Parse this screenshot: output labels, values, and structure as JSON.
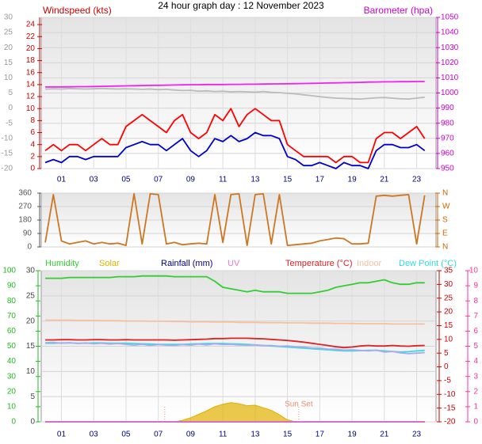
{
  "chart_data": [
    {
      "type": "line",
      "title": "24 hour graph day : 12 November 2023",
      "ylabel": "Windspeed (kts)",
      "y2label": "Barometer (hpa)",
      "x": [
        0,
        0.5,
        1,
        1.5,
        2,
        2.5,
        3,
        3.5,
        4,
        4.5,
        5,
        5.5,
        6,
        6.5,
        7,
        7.5,
        8,
        8.5,
        9,
        9.5,
        10,
        10.5,
        11,
        11.5,
        12,
        12.5,
        13,
        13.5,
        14,
        14.5,
        15,
        15.5,
        16,
        16.5,
        17,
        17.5,
        18,
        18.5,
        19,
        19.5,
        20,
        20.5,
        21,
        21.5,
        22,
        22.5,
        23,
        23.5
      ],
      "xlim": [
        -0.25,
        24.2
      ],
      "xticks": [
        {
          "value": 1,
          "label": "01"
        },
        {
          "value": 3,
          "label": "03"
        },
        {
          "value": 5,
          "label": "05"
        },
        {
          "value": 7,
          "label": "07"
        },
        {
          "value": 9,
          "label": "09"
        },
        {
          "value": 11,
          "label": "11"
        },
        {
          "value": 13,
          "label": "13"
        },
        {
          "value": 15,
          "label": "15"
        },
        {
          "value": 17,
          "label": "17"
        },
        {
          "value": 19,
          "label": "19"
        },
        {
          "value": 21,
          "label": "21"
        },
        {
          "value": 23,
          "label": "23"
        }
      ],
      "ylim": [
        0,
        25.2
      ],
      "yticks": [
        0,
        2,
        4,
        6,
        8,
        10,
        12,
        14,
        16,
        18,
        20,
        22,
        24
      ],
      "y2lim": [
        950,
        1050
      ],
      "y2ticks": [
        950,
        960,
        970,
        980,
        990,
        1000,
        1010,
        1020,
        1030,
        1040,
        1050
      ],
      "y3lim": [
        -20,
        30
      ],
      "y3ticks": [
        -20,
        -15,
        -10,
        -5,
        0,
        5,
        10,
        15,
        20,
        25,
        30
      ],
      "grid_axis": "y2",
      "axis_colors": {
        "y": "#cc0000",
        "y2": "#cc00cc",
        "y3": "#999999"
      },
      "series": [
        {
          "color": "#bbbbbb",
          "axis": "y3",
          "values": [
            6.3,
            6.4,
            6.3,
            6.5,
            6.4,
            6.3,
            6.4,
            6.5,
            6.4,
            6.3,
            6.4,
            6.3,
            6.2,
            6.3,
            6.1,
            6.2,
            6,
            5.8,
            5.9,
            5.6,
            5.7,
            5.5,
            5.6,
            5.4,
            5.5,
            5.4,
            5.3,
            5.5,
            5.2,
            5.1,
            4.9,
            4.7,
            4.4,
            4.1,
            3.8,
            3.5,
            3.3,
            3.2,
            3.1,
            3.0,
            3.2,
            3.4,
            3.5,
            3.3,
            3.1,
            3.0,
            3.3,
            3.6
          ]
        },
        {
          "color": "#ee22ee",
          "axis": "y2",
          "values": [
            1004,
            1004,
            1004,
            1004.1,
            1004.2,
            1004.2,
            1004.3,
            1004.4,
            1004.5,
            1004.6,
            1004.7,
            1004.8,
            1004.9,
            1005,
            1005.1,
            1005.2,
            1005.3,
            1005.4,
            1005.5,
            1005.5,
            1005.6,
            1005.6,
            1005.6,
            1005.7,
            1005.7,
            1005.8,
            1005.8,
            1005.9,
            1006,
            1006,
            1006.1,
            1006.2,
            1006.3,
            1006.4,
            1006.5,
            1006.6,
            1006.7,
            1006.8,
            1006.9,
            1007,
            1007.2,
            1007.3,
            1007.4,
            1007.4,
            1007.5,
            1007.5,
            1007.6,
            1007.6
          ]
        },
        {
          "color": "#ff0000",
          "axis": "y",
          "values": [
            3,
            4,
            3,
            4,
            4,
            3,
            4,
            5,
            4,
            4,
            7,
            8,
            9,
            8,
            7,
            6,
            8,
            9,
            6,
            5,
            6,
            9,
            8,
            10,
            7,
            9,
            10,
            9,
            8,
            8,
            4,
            3,
            2,
            2,
            2,
            2,
            1,
            2,
            2,
            1,
            1,
            5,
            6,
            6,
            5,
            6,
            7,
            5
          ]
        },
        {
          "color": "#0000cc",
          "axis": "y",
          "values": [
            1,
            1.5,
            1,
            2,
            2,
            1.5,
            2,
            2,
            2,
            2,
            3.5,
            4,
            4.5,
            4,
            4,
            3,
            4,
            5,
            3,
            2,
            3,
            5,
            4.5,
            5.5,
            4.5,
            5,
            6,
            5.5,
            5.5,
            5,
            2,
            1.5,
            0.5,
            0.5,
            1,
            0.5,
            0,
            1,
            0.5,
            0.5,
            0,
            3,
            4,
            4,
            3.5,
            3.5,
            4,
            3
          ]
        }
      ]
    },
    {
      "type": "line",
      "x": [
        0,
        0.5,
        1,
        1.5,
        2,
        2.5,
        3,
        3.5,
        4,
        4.5,
        5,
        5.5,
        6,
        6.5,
        7,
        7.5,
        8,
        8.5,
        9,
        9.5,
        10,
        10.5,
        11,
        11.5,
        12,
        12.5,
        13,
        13.5,
        14,
        14.5,
        15,
        15.5,
        16,
        16.5,
        17,
        17.5,
        18,
        18.5,
        19,
        19.5,
        20,
        20.5,
        21,
        21.5,
        22,
        22.5,
        23,
        23.5
      ],
      "xlim": [
        -0.25,
        24.2
      ],
      "ylim": [
        0,
        360
      ],
      "yticks": [
        0,
        90,
        180,
        270,
        360
      ],
      "y2lim": [
        0,
        360
      ],
      "y2ticks": [
        {
          "value": 0,
          "label": "N"
        },
        {
          "value": 90,
          "label": "E"
        },
        {
          "value": 180,
          "label": "S"
        },
        {
          "value": 270,
          "label": "W"
        },
        {
          "value": 360,
          "label": "N"
        }
      ],
      "grid_axis": "y",
      "axis_colors": {
        "y": "#555555",
        "y2": "#cc6600"
      },
      "series": [
        {
          "color": "#cc7722",
          "axis": "y",
          "values": [
            30,
            350,
            40,
            20,
            30,
            40,
            20,
            30,
            20,
            25,
            10,
            355,
            20,
            355,
            350,
            20,
            30,
            15,
            20,
            25,
            20,
            350,
            30,
            350,
            355,
            10,
            350,
            355,
            20,
            350,
            10,
            15,
            20,
            25,
            40,
            50,
            60,
            55,
            20,
            20,
            25,
            340,
            345,
            340,
            345,
            350,
            20,
            345
          ]
        }
      ]
    },
    {
      "type": "line",
      "x": [
        0,
        0.5,
        1,
        1.5,
        2,
        2.5,
        3,
        3.5,
        4,
        4.5,
        5,
        5.5,
        6,
        6.5,
        7,
        7.5,
        8,
        8.5,
        9,
        9.5,
        10,
        10.5,
        11,
        11.5,
        12,
        12.5,
        13,
        13.5,
        14,
        14.5,
        15,
        15.5,
        16,
        16.5,
        17,
        17.5,
        18,
        18.5,
        19,
        19.5,
        20,
        20.5,
        21,
        21.5,
        22,
        22.5,
        23,
        23.5
      ],
      "xlim": [
        -0.25,
        24.2
      ],
      "xticks": [
        {
          "value": 1,
          "label": "01"
        },
        {
          "value": 3,
          "label": "03"
        },
        {
          "value": 5,
          "label": "05"
        },
        {
          "value": 7,
          "label": "07"
        },
        {
          "value": 9,
          "label": "09"
        },
        {
          "value": 11,
          "label": "11"
        },
        {
          "value": 13,
          "label": "13"
        },
        {
          "value": 15,
          "label": "15"
        },
        {
          "value": 17,
          "label": "17"
        },
        {
          "value": 19,
          "label": "19"
        },
        {
          "value": 21,
          "label": "21"
        },
        {
          "value": 23,
          "label": "23"
        }
      ],
      "ylim": [
        0,
        100
      ],
      "yticks": [
        0,
        10,
        20,
        30,
        40,
        50,
        60,
        70,
        80,
        90,
        100
      ],
      "y3lim": [
        0,
        30
      ],
      "y3ticks": [
        0,
        5,
        10,
        15,
        20,
        25,
        30
      ],
      "y2lim": [
        -20,
        35
      ],
      "y2ticks": [
        -20,
        -15,
        -10,
        -5,
        0,
        5,
        10,
        15,
        20,
        25,
        30,
        35
      ],
      "y4lim": [
        0,
        10
      ],
      "y4ticks": [
        0,
        1,
        2,
        3,
        4,
        5,
        6,
        7,
        8,
        9,
        10
      ],
      "grid_axis": "y3",
      "axis_colors": {
        "y": "#22bb22",
        "y3": "#444444",
        "y2": "#cc0000",
        "y4": "#ff3399"
      },
      "annotations": [
        {
          "x": 7.4
        },
        {
          "x": 15.7,
          "text": "Sun Set"
        }
      ],
      "series": [
        {
          "name": "Humidity",
          "color": "#33cc33",
          "axis": "y",
          "values": [
            95,
            95,
            95,
            95.5,
            95.5,
            95.5,
            95.5,
            95.5,
            95.5,
            96,
            96,
            96,
            96.5,
            96.5,
            96.5,
            96.5,
            96,
            96,
            96,
            96,
            96,
            93,
            89,
            88,
            87,
            86,
            87,
            86,
            86,
            86,
            85,
            85,
            85,
            85,
            86,
            87,
            89,
            90,
            91,
            92,
            92,
            93,
            94,
            92,
            91,
            91,
            92,
            92
          ]
        },
        {
          "name": "Solar",
          "color": "#e0b000",
          "axis": "y3",
          "kind": "area",
          "values": [
            0,
            0,
            0,
            0,
            0,
            0,
            0,
            0,
            0,
            0,
            0,
            0,
            0,
            0,
            0,
            0,
            0,
            0.3,
            0.8,
            1.5,
            2.2,
            3,
            3.5,
            3.8,
            3.6,
            3.2,
            3.3,
            2.8,
            2.3,
            1.4,
            0.4,
            0,
            0,
            0,
            0,
            0,
            0,
            0,
            0,
            0,
            0,
            0,
            0,
            0,
            0,
            0,
            0,
            0
          ]
        },
        {
          "name": "Rainfall (mm)",
          "color": "#000080",
          "axis": "y3",
          "values": [
            0,
            0,
            0,
            0,
            0,
            0,
            0,
            0,
            0,
            0,
            0,
            0,
            0,
            0,
            0,
            0,
            0,
            0,
            0,
            0,
            0,
            0,
            0,
            0,
            0,
            0,
            0,
            0,
            0,
            0,
            0,
            0,
            0,
            0,
            0,
            0,
            0,
            0,
            0,
            0,
            0,
            0,
            0,
            0,
            0,
            0,
            0,
            0
          ]
        },
        {
          "name": "UV",
          "color": "#ee77cc",
          "axis": "y4",
          "values": [
            0,
            0,
            0,
            0,
            0,
            0,
            0,
            0,
            0,
            0,
            0,
            0,
            0,
            0,
            0,
            0,
            0,
            0,
            0,
            0,
            0,
            0,
            0,
            0,
            0,
            0,
            0,
            0,
            0,
            0,
            0,
            0,
            0,
            0,
            0,
            0,
            0,
            0,
            0,
            0,
            0,
            0,
            0,
            0,
            0,
            0,
            0,
            0
          ]
        },
        {
          "name": "Temperature (°C)",
          "color": "#dd2222",
          "axis": "y2",
          "values": [
            9.8,
            9.8,
            9.9,
            9.9,
            9.8,
            9.8,
            9.9,
            9.9,
            9.8,
            9.8,
            9.9,
            9.8,
            9.8,
            9.8,
            9.8,
            9.8,
            9.7,
            9.8,
            9.9,
            10,
            10.1,
            10.3,
            10.3,
            10.4,
            10.4,
            10.4,
            10.3,
            10.2,
            10,
            9.8,
            9.6,
            9.3,
            9,
            8.6,
            8.2,
            7.8,
            7.3,
            7,
            7.2,
            7.6,
            7.8,
            7.6,
            7.6,
            7.8,
            7.6,
            7.5,
            7.7,
            7.8
          ]
        },
        {
          "name": "Indoor",
          "color": "#f5c0a0",
          "axis": "y2",
          "values": [
            17,
            17,
            17,
            17,
            16.9,
            16.9,
            16.9,
            16.8,
            16.8,
            16.8,
            16.7,
            16.7,
            16.7,
            16.6,
            16.6,
            16.6,
            16.5,
            16.5,
            16.4,
            16.4,
            16.4,
            16.3,
            16.3,
            16.3,
            16.2,
            16.2,
            16.2,
            16.1,
            16.1,
            16.1,
            16,
            16,
            16,
            15.9,
            15.9,
            15.9,
            15.8,
            15.8,
            15.8,
            15.7,
            15.7,
            15.7,
            15.7,
            15.6,
            15.6,
            15.6,
            15.6,
            15.6
          ]
        },
        {
          "name": "Dew Point (°C)",
          "color": "#33dddd",
          "axis": "y2",
          "values": [
            8.6,
            8.6,
            8.7,
            8.7,
            8.6,
            8.6,
            8.7,
            8.7,
            8.6,
            8.6,
            8.6,
            8.5,
            8.4,
            8.3,
            8.2,
            8.2,
            8.2,
            8.2,
            8.3,
            8.4,
            8.5,
            8.5,
            8.5,
            8.4,
            8.3,
            8.2,
            8,
            7.8,
            7.6,
            7.4,
            7.2,
            7,
            6.8,
            6.6,
            6.4,
            6.2,
            6,
            5.8,
            5.8,
            5.9,
            6,
            6,
            5.8,
            5.6,
            5.4,
            5.5,
            5.8,
            6
          ]
        },
        {
          "color": "#aaaaee",
          "axis": "y2",
          "values": [
            8.8,
            8.9,
            8.6,
            8.8,
            8.5,
            8.7,
            8.4,
            8.6,
            8.3,
            8.5,
            8.2,
            7.9,
            8.2,
            7.8,
            8.1,
            7.9,
            7.8,
            8.1,
            7.9,
            8.3,
            8,
            8.4,
            8.1,
            8.2,
            8,
            7.9,
            8,
            7.7,
            7.8,
            7.5,
            7.6,
            7.3,
            7.2,
            6.9,
            6.8,
            6.5,
            6.4,
            6.1,
            6.2,
            6.0,
            5.8,
            6.1,
            5.4,
            5.6,
            5.1,
            4.8,
            5,
            5.2
          ]
        }
      ]
    }
  ]
}
